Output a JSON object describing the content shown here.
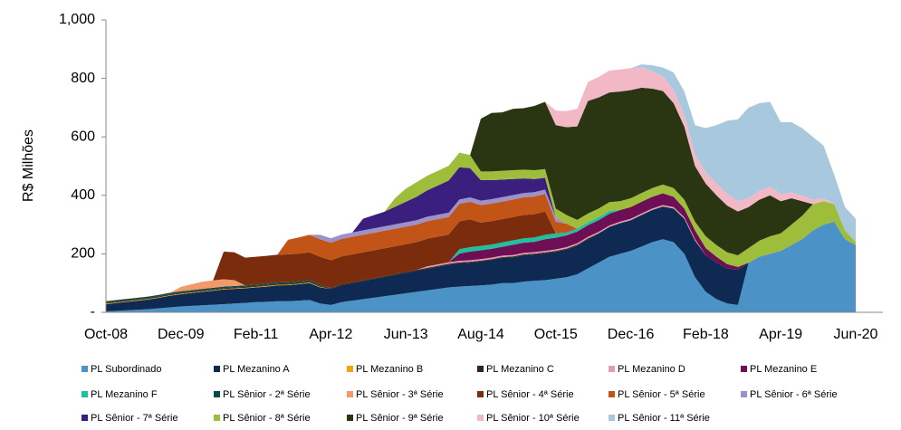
{
  "chart_data": {
    "type": "stacked-area",
    "y_label": "R$ Milhões",
    "ylim": [
      0,
      1000
    ],
    "yticks": [
      {
        "value": 0,
        "label": "-"
      },
      200,
      400,
      600,
      800,
      {
        "value": 1000,
        "label": "1,000"
      }
    ],
    "categories": [
      "Oct-08",
      null,
      null,
      null,
      null,
      null,
      null,
      "Dec-09",
      null,
      null,
      null,
      null,
      null,
      null,
      "Feb-11",
      null,
      null,
      null,
      null,
      null,
      null,
      "Apr-12",
      null,
      null,
      null,
      null,
      null,
      null,
      "Jun-13",
      null,
      null,
      null,
      null,
      null,
      null,
      "Aug-14",
      null,
      null,
      null,
      null,
      null,
      null,
      "Oct-15",
      null,
      null,
      null,
      null,
      null,
      null,
      "Dec-16",
      null,
      null,
      null,
      null,
      null,
      null,
      "Feb-18",
      null,
      null,
      null,
      null,
      null,
      null,
      "Apr-19",
      null,
      null,
      null,
      null,
      null,
      null,
      "Jun-20"
    ],
    "series": [
      {
        "name": "PL Subordinado",
        "color": "#4b93c6",
        "values": [
          3,
          5,
          7,
          9,
          11,
          14,
          17,
          20,
          22,
          24,
          26,
          28,
          30,
          32,
          35,
          36,
          38,
          38,
          40,
          42,
          30,
          25,
          35,
          40,
          45,
          50,
          55,
          60,
          65,
          70,
          75,
          80,
          85,
          88,
          90,
          92,
          95,
          100,
          100,
          105,
          108,
          110,
          115,
          120,
          130,
          150,
          170,
          190,
          200,
          210,
          225,
          240,
          250,
          240,
          200,
          120,
          70,
          45,
          30,
          25,
          170,
          190,
          200,
          210,
          230,
          250,
          280,
          300,
          310,
          250,
          230
        ]
      },
      {
        "name": "PL Mezanino A",
        "color": "#0f2a52",
        "values": [
          25,
          27,
          29,
          31,
          33,
          36,
          40,
          42,
          44,
          46,
          48,
          50,
          50,
          50,
          50,
          52,
          54,
          55,
          56,
          58,
          55,
          55,
          58,
          60,
          62,
          64,
          66,
          68,
          70,
          72,
          74,
          76,
          78,
          80,
          80,
          82,
          84,
          86,
          88,
          90,
          90,
          92,
          92,
          95,
          98,
          100,
          100,
          102,
          105,
          105,
          108,
          110,
          112,
          115,
          120,
          125,
          125,
          125,
          120,
          120,
          0,
          0,
          0,
          0,
          0,
          0,
          0,
          0,
          0,
          0,
          0
        ]
      },
      {
        "name": "PL Mezanino B",
        "color": "#f0a30a",
        "values": [
          2,
          2,
          2,
          2,
          2,
          2,
          2,
          2,
          2,
          2,
          2,
          2,
          2,
          2,
          2,
          2,
          2,
          2,
          2,
          2,
          2,
          0,
          0,
          0,
          0,
          0,
          0,
          0,
          0,
          0,
          0,
          0,
          0,
          0,
          0,
          0,
          0,
          0,
          0,
          0,
          0,
          0,
          0,
          0,
          0,
          0,
          0,
          0,
          0,
          0,
          0,
          0,
          0,
          0,
          0,
          0,
          0,
          0,
          0,
          0,
          0,
          0,
          0,
          0,
          0,
          0,
          0,
          0,
          0,
          0,
          0
        ]
      },
      {
        "name": "PL Mezanino C",
        "color": "#3b2312",
        "values": [
          3,
          3,
          3,
          3,
          3,
          3,
          3,
          3,
          3,
          3,
          3,
          3,
          3,
          3,
          3,
          3,
          3,
          3,
          3,
          3,
          3,
          3,
          3,
          3,
          3,
          3,
          3,
          3,
          3,
          3,
          3,
          3,
          3,
          3,
          3,
          3,
          3,
          3,
          3,
          3,
          3,
          3,
          3,
          3,
          3,
          3,
          0,
          0,
          0,
          0,
          0,
          0,
          0,
          0,
          0,
          0,
          0,
          0,
          0,
          0,
          0,
          0,
          0,
          0,
          0,
          0,
          0,
          0,
          0,
          0,
          0
        ]
      },
      {
        "name": "PL Mezanino D",
        "color": "#e39cb0",
        "values": [
          0,
          0,
          0,
          0,
          0,
          0,
          0,
          0,
          0,
          0,
          0,
          0,
          0,
          0,
          0,
          0,
          0,
          0,
          0,
          0,
          0,
          0,
          0,
          0,
          0,
          0,
          0,
          0,
          0,
          0,
          5,
          5,
          5,
          5,
          5,
          5,
          5,
          5,
          5,
          5,
          5,
          5,
          5,
          5,
          5,
          5,
          5,
          5,
          5,
          5,
          5,
          5,
          5,
          5,
          5,
          5,
          0,
          0,
          0,
          0,
          0,
          0,
          0,
          0,
          0,
          0,
          0,
          0,
          0,
          0,
          0
        ]
      },
      {
        "name": "PL Mezanino E",
        "color": "#6e0f55",
        "values": [
          0,
          0,
          0,
          0,
          0,
          0,
          0,
          0,
          0,
          0,
          0,
          0,
          0,
          0,
          0,
          0,
          0,
          0,
          0,
          0,
          0,
          0,
          0,
          0,
          0,
          0,
          0,
          0,
          0,
          0,
          0,
          0,
          0,
          25,
          30,
          30,
          30,
          30,
          35,
          35,
          35,
          40,
          40,
          40,
          40,
          40,
          40,
          40,
          40,
          40,
          40,
          40,
          40,
          35,
          30,
          30,
          25,
          20,
          15,
          10,
          0,
          0,
          0,
          0,
          0,
          0,
          0,
          0,
          0,
          0,
          0
        ]
      },
      {
        "name": "PL Mezanino F",
        "color": "#1fbfa0",
        "values": [
          0,
          0,
          0,
          0,
          0,
          0,
          0,
          0,
          0,
          0,
          0,
          0,
          0,
          0,
          0,
          0,
          0,
          0,
          0,
          0,
          0,
          0,
          0,
          0,
          0,
          0,
          0,
          0,
          0,
          0,
          0,
          0,
          0,
          15,
          15,
          15,
          15,
          15,
          15,
          15,
          15,
          15,
          15,
          10,
          10,
          10,
          10,
          10,
          0,
          0,
          0,
          0,
          0,
          0,
          0,
          0,
          0,
          0,
          0,
          0,
          0,
          0,
          0,
          0,
          0,
          0,
          0,
          0,
          0,
          0,
          0
        ]
      },
      {
        "name": "PL Sênior - 2ª Série",
        "color": "#0d4a4a",
        "values": [
          5,
          5,
          5,
          5,
          5,
          5,
          5,
          5,
          5,
          5,
          5,
          5,
          5,
          5,
          5,
          5,
          5,
          5,
          5,
          5,
          5,
          0,
          0,
          0,
          0,
          0,
          0,
          0,
          0,
          0,
          0,
          0,
          0,
          0,
          0,
          0,
          0,
          0,
          0,
          0,
          0,
          0,
          0,
          0,
          0,
          0,
          0,
          0,
          0,
          0,
          0,
          0,
          0,
          0,
          0,
          0,
          0,
          0,
          0,
          0,
          0,
          0,
          0,
          0,
          0,
          0,
          0,
          0,
          0,
          0,
          0
        ]
      },
      {
        "name": "PL Sênior - 3ª Série",
        "color": "#f29a6c",
        "values": [
          0,
          0,
          0,
          0,
          0,
          0,
          0,
          15,
          20,
          25,
          25,
          25,
          20,
          0,
          0,
          0,
          0,
          0,
          0,
          0,
          0,
          0,
          0,
          0,
          0,
          0,
          0,
          0,
          0,
          0,
          0,
          0,
          0,
          0,
          0,
          0,
          0,
          0,
          0,
          0,
          0,
          0,
          0,
          0,
          0,
          0,
          0,
          0,
          0,
          0,
          0,
          0,
          0,
          0,
          0,
          0,
          0,
          0,
          0,
          0,
          0,
          0,
          0,
          0,
          0,
          0,
          0,
          0,
          0,
          0,
          0
        ]
      },
      {
        "name": "PL Sênior - 4ª Série",
        "color": "#7a2c0c",
        "values": [
          0,
          0,
          0,
          0,
          0,
          0,
          0,
          0,
          0,
          0,
          0,
          95,
          95,
          95,
          95,
          95,
          95,
          95,
          95,
          95,
          95,
          95,
          95,
          95,
          95,
          95,
          95,
          95,
          95,
          95,
          95,
          95,
          95,
          95,
          95,
          80,
          80,
          80,
          80,
          80,
          80,
          80,
          0,
          0,
          0,
          0,
          0,
          0,
          0,
          0,
          0,
          0,
          0,
          0,
          0,
          0,
          0,
          0,
          0,
          0,
          0,
          0,
          0,
          0,
          0,
          0,
          0,
          0,
          0,
          0,
          0
        ]
      },
      {
        "name": "PL Sênior - 5ª Série",
        "color": "#c25418",
        "values": [
          0,
          0,
          0,
          0,
          0,
          0,
          0,
          0,
          0,
          0,
          0,
          0,
          0,
          0,
          0,
          0,
          0,
          50,
          55,
          60,
          60,
          60,
          60,
          60,
          60,
          60,
          60,
          60,
          60,
          60,
          60,
          60,
          60,
          60,
          60,
          60,
          60,
          60,
          60,
          60,
          60,
          60,
          40,
          30,
          0,
          0,
          0,
          0,
          0,
          0,
          0,
          0,
          0,
          0,
          0,
          0,
          0,
          0,
          0,
          0,
          0,
          0,
          0,
          0,
          0,
          0,
          0,
          0,
          0,
          0,
          0
        ]
      },
      {
        "name": "PL Sênior - 6ª Série",
        "color": "#9c91c9",
        "values": [
          0,
          0,
          0,
          0,
          0,
          0,
          0,
          0,
          0,
          0,
          0,
          0,
          0,
          0,
          0,
          0,
          0,
          0,
          0,
          0,
          15,
          15,
          15,
          15,
          15,
          15,
          15,
          15,
          15,
          15,
          15,
          15,
          15,
          15,
          15,
          15,
          15,
          15,
          15,
          15,
          15,
          15,
          15,
          0,
          0,
          0,
          0,
          0,
          0,
          0,
          0,
          0,
          0,
          0,
          0,
          0,
          0,
          0,
          0,
          0,
          0,
          0,
          0,
          0,
          0,
          0,
          0,
          0,
          0,
          0,
          0
        ]
      },
      {
        "name": "PL Sênior - 7ª Série",
        "color": "#3b1f7f",
        "values": [
          0,
          0,
          0,
          0,
          0,
          0,
          0,
          0,
          0,
          0,
          0,
          0,
          0,
          0,
          0,
          0,
          0,
          0,
          0,
          0,
          0,
          0,
          0,
          0,
          40,
          45,
          50,
          60,
          70,
          80,
          90,
          100,
          110,
          110,
          100,
          70,
          65,
          60,
          55,
          50,
          45,
          40,
          0,
          0,
          0,
          0,
          0,
          0,
          0,
          0,
          0,
          0,
          0,
          0,
          0,
          0,
          0,
          0,
          0,
          0,
          0,
          0,
          0,
          0,
          0,
          0,
          0,
          0,
          0,
          0,
          0
        ]
      },
      {
        "name": "PL Sênior - 8ª Série",
        "color": "#9ebd3b",
        "values": [
          0,
          0,
          0,
          0,
          0,
          0,
          0,
          0,
          0,
          0,
          0,
          0,
          0,
          0,
          0,
          0,
          0,
          0,
          0,
          0,
          0,
          0,
          0,
          0,
          0,
          0,
          0,
          30,
          45,
          50,
          50,
          50,
          50,
          50,
          45,
          30,
          30,
          30,
          30,
          30,
          30,
          30,
          30,
          30,
          30,
          30,
          30,
          30,
          30,
          30,
          30,
          30,
          30,
          30,
          30,
          30,
          40,
          40,
          40,
          40,
          50,
          55,
          60,
          60,
          70,
          80,
          90,
          80,
          60,
          30,
          10
        ]
      },
      {
        "name": "PL Sênior - 9ª Série",
        "color": "#2a3512",
        "values": [
          0,
          0,
          0,
          0,
          0,
          0,
          0,
          0,
          0,
          0,
          0,
          0,
          0,
          0,
          0,
          0,
          0,
          0,
          0,
          0,
          0,
          0,
          0,
          0,
          0,
          0,
          0,
          0,
          0,
          0,
          0,
          0,
          0,
          0,
          0,
          180,
          200,
          200,
          210,
          210,
          220,
          230,
          285,
          300,
          320,
          385,
          380,
          375,
          375,
          370,
          360,
          340,
          320,
          290,
          250,
          190,
          180,
          170,
          160,
          150,
          140,
          140,
          140,
          110,
          90,
          50,
          0,
          0,
          0,
          0,
          0
        ]
      },
      {
        "name": "PL Sênior - 10ª Série",
        "color": "#f2b8c6",
        "values": [
          0,
          0,
          0,
          0,
          0,
          0,
          0,
          0,
          0,
          0,
          0,
          0,
          0,
          0,
          0,
          0,
          0,
          0,
          0,
          0,
          0,
          0,
          0,
          0,
          0,
          0,
          0,
          0,
          0,
          0,
          0,
          0,
          0,
          0,
          0,
          0,
          0,
          0,
          0,
          0,
          0,
          0,
          50,
          55,
          60,
          65,
          70,
          75,
          75,
          75,
          70,
          60,
          50,
          45,
          40,
          40,
          40,
          40,
          40,
          35,
          30,
          30,
          30,
          25,
          20,
          20,
          15,
          10,
          0,
          0,
          0
        ]
      },
      {
        "name": "PL Sênior - 11ª Série",
        "color": "#a8c8de",
        "values": [
          0,
          0,
          0,
          0,
          0,
          0,
          0,
          0,
          0,
          0,
          0,
          0,
          0,
          0,
          0,
          0,
          0,
          0,
          0,
          0,
          0,
          0,
          0,
          0,
          0,
          0,
          0,
          0,
          0,
          0,
          0,
          0,
          0,
          0,
          0,
          0,
          0,
          0,
          0,
          0,
          0,
          0,
          0,
          0,
          0,
          0,
          0,
          0,
          0,
          0,
          10,
          20,
          30,
          60,
          80,
          100,
          150,
          200,
          250,
          280,
          310,
          300,
          290,
          245,
          240,
          230,
          215,
          180,
          100,
          80,
          80
        ]
      }
    ]
  }
}
